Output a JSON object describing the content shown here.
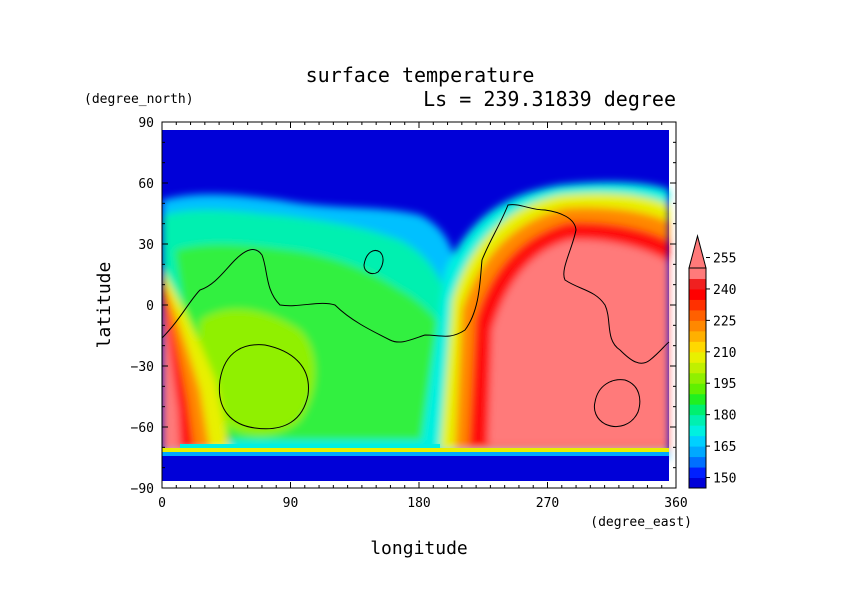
{
  "chart_data": {
    "type": "heatmap",
    "title": "surface temperature",
    "subtitle": "Ls = 239.31839 degree",
    "xlabel": "longitude",
    "ylabel": "latitude",
    "x_units": "(degree_east)",
    "y_units": "(degree_north)",
    "xlim": [
      0,
      360
    ],
    "ylim": [
      -90,
      90
    ],
    "x_ticks": [
      "0",
      "90",
      "180",
      "270",
      "360"
    ],
    "y_ticks": [
      "90",
      "60",
      "30",
      "0",
      "−30",
      "−60",
      "−90"
    ],
    "x_tick_values": [
      0,
      90,
      180,
      270,
      360
    ],
    "y_tick_values": [
      90,
      60,
      30,
      0,
      -30,
      -60,
      -90
    ],
    "colorbar": {
      "levels": [
        145,
        150,
        155,
        160,
        165,
        170,
        175,
        180,
        185,
        190,
        195,
        200,
        205,
        210,
        215,
        220,
        225,
        230,
        235,
        240,
        245,
        250,
        255,
        260
      ],
      "colors": [
        "#0000d8",
        "#0020ff",
        "#0070ff",
        "#00a8ff",
        "#00d0ff",
        "#00f0e0",
        "#00f0b0",
        "#00f070",
        "#20f020",
        "#60f000",
        "#90f000",
        "#c0f000",
        "#e8f000",
        "#ffd800",
        "#ffb000",
        "#ff8800",
        "#ff6000",
        "#ff3000",
        "#ff0000",
        "#f02020",
        "#ff7a7a"
      ],
      "tick_labels": [
        "150",
        "165",
        "180",
        "195",
        "210",
        "225",
        "240",
        "255"
      ],
      "tick_values": [
        150,
        165,
        180,
        195,
        210,
        225,
        240,
        255
      ],
      "extend": "max"
    },
    "grid": false
  }
}
